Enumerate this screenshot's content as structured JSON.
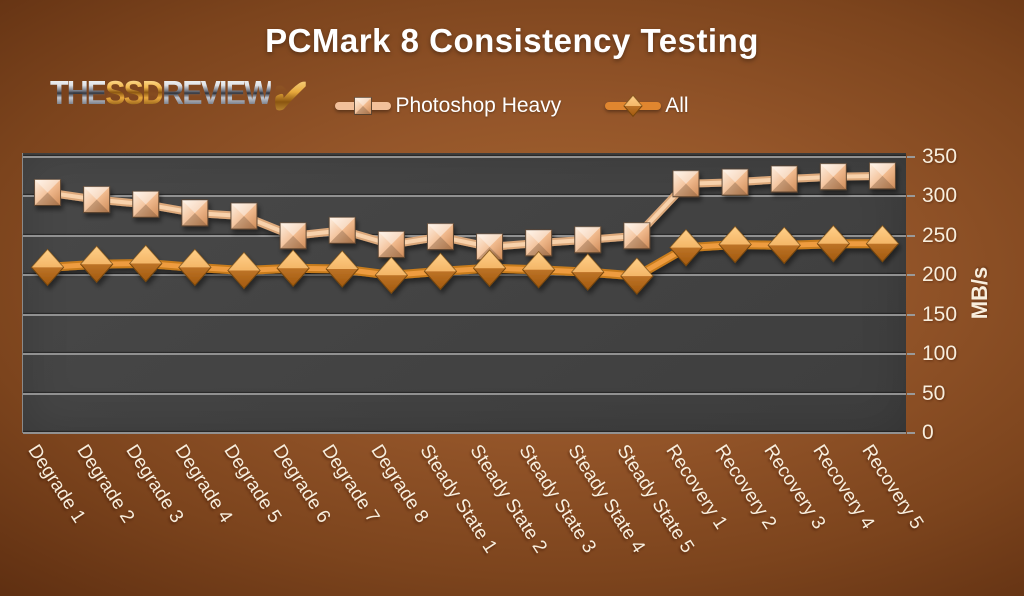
{
  "logo": {
    "part1": "THE",
    "part2": "SSD",
    "part3": "REVIEW",
    "check": "✔"
  },
  "chart_data": {
    "type": "line",
    "title": "PCMark 8 Consistency Testing",
    "categories": [
      "Degrade 1",
      "Degrade 2",
      "Degrade 3",
      "Degrade 4",
      "Degrade 5",
      "Degrade 6",
      "Degrade 7",
      "Degrade 8",
      "Steady State 1",
      "Steady State 2",
      "Steady State 3",
      "Steady State 4",
      "Steady State 5",
      "Recovery 1",
      "Recovery 2",
      "Recovery 3",
      "Recovery 4",
      "Recovery 5"
    ],
    "series": [
      {
        "name": "Photoshop Heavy",
        "marker": "square",
        "line_color": "#f2c09a",
        "line_edge_color": "#dca87a",
        "line_core_color": "#f8d2ac",
        "values": [
          305,
          296,
          290,
          279,
          275,
          250,
          257,
          239,
          249,
          236,
          241,
          245,
          250,
          316,
          318,
          322,
          325,
          326
        ]
      },
      {
        "name": "All",
        "marker": "diamond",
        "line_color": "#e0862f",
        "line_edge_color": "#c87b1d",
        "line_core_color": "#ee9c3f",
        "values": [
          210,
          214,
          215,
          210,
          206,
          209,
          208,
          200,
          205,
          209,
          207,
          204,
          199,
          235,
          239,
          238,
          240,
          240
        ]
      }
    ],
    "xlabel": "",
    "ylabel": "MB/s",
    "ylim": [
      0,
      350
    ],
    "yticks": [
      0,
      50,
      100,
      150,
      200,
      250,
      300,
      350
    ],
    "grid": true,
    "legend_position": "top-center",
    "plot_bg": "#424242",
    "gridline_color": "#919191",
    "background_color": "#8a4c22",
    "label_color": "#f8eedd"
  }
}
